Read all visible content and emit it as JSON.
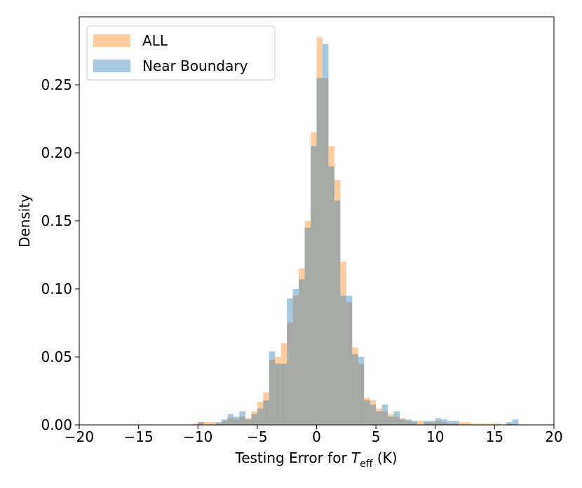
{
  "chart_data": {
    "type": "histogram",
    "xlabel": {
      "prefix": "Testing Error for ",
      "symbol": "T",
      "subscript": "eff",
      "suffix": " (K)"
    },
    "ylabel": "Density",
    "bins": [
      -12,
      -11.5,
      -11,
      -10.5,
      -10,
      -9.5,
      -9,
      -8.5,
      -8,
      -7.5,
      -7,
      -6.5,
      -6,
      -5.5,
      -5,
      -4.5,
      -4,
      -3.5,
      -3,
      -2.5,
      -2,
      -1.5,
      -1,
      -0.5,
      0,
      0.5,
      1,
      1.5,
      2,
      2.5,
      3,
      3.5,
      4,
      4.5,
      5,
      5.5,
      6,
      6.5,
      7,
      7.5,
      8,
      8.5,
      9,
      9.5,
      10,
      10.5,
      11,
      11.5,
      12,
      12.5,
      13,
      13.5,
      14,
      14.5,
      15,
      15.5,
      16,
      16.5,
      17,
      17.5,
      18
    ],
    "series": [
      {
        "name": "ALL",
        "color": "#ff7f0e",
        "values": [
          0,
          0,
          0,
          0.001,
          0.002,
          0.002,
          0.002,
          0.001,
          0.003,
          0.005,
          0.004,
          0.006,
          0.005,
          0.01,
          0.017,
          0.024,
          0.048,
          0.05,
          0.06,
          0.075,
          0.095,
          0.115,
          0.15,
          0.215,
          0.285,
          0.255,
          0.205,
          0.18,
          0.12,
          0.09,
          0.057,
          0.045,
          0.02,
          0.018,
          0.012,
          0.01,
          0.008,
          0.006,
          0.005,
          0.003,
          0.002,
          0.003,
          0.002,
          0.002,
          0.003,
          0.002,
          0.001,
          0.001,
          0.002,
          0.002,
          0.001,
          0.001,
          0.001,
          0.001,
          0.001,
          0,
          0.001,
          0,
          0,
          0
        ]
      },
      {
        "name": "Near Boundary",
        "color": "#1f77b4",
        "values": [
          0,
          0,
          0,
          0,
          0.002,
          0,
          0,
          0.002,
          0.004,
          0.008,
          0.006,
          0.01,
          0.004,
          0.008,
          0.012,
          0.018,
          0.054,
          0.045,
          0.045,
          0.093,
          0.1,
          0.107,
          0.145,
          0.205,
          0.255,
          0.28,
          0.19,
          0.165,
          0.095,
          0.095,
          0.052,
          0.05,
          0.018,
          0.015,
          0.01,
          0.015,
          0.006,
          0.01,
          0.004,
          0.004,
          0.003,
          0,
          0.003,
          0.003,
          0.005,
          0.004,
          0.003,
          0.003,
          0,
          0,
          0,
          0,
          0,
          0,
          0,
          0,
          0.002,
          0.004,
          0,
          0
        ]
      }
    ],
    "alpha": 0.4,
    "xlim": [
      -20,
      20
    ],
    "xticks": [
      {
        "value": -20,
        "label": "−20"
      },
      {
        "value": -15,
        "label": "−15"
      },
      {
        "value": -10,
        "label": "−10"
      },
      {
        "value": -5,
        "label": "−5"
      },
      0,
      5,
      10,
      15,
      20
    ],
    "ylim": [
      0,
      0.3
    ],
    "yticks": [
      {
        "value": 0,
        "label": "0.00"
      },
      {
        "value": 0.05,
        "label": "0.05"
      },
      {
        "value": 0.1,
        "label": "0.10"
      },
      {
        "value": 0.15,
        "label": "0.15"
      },
      {
        "value": 0.2,
        "label": "0.20"
      },
      {
        "value": 0.25,
        "label": "0.25"
      }
    ],
    "legend": "upper left"
  }
}
